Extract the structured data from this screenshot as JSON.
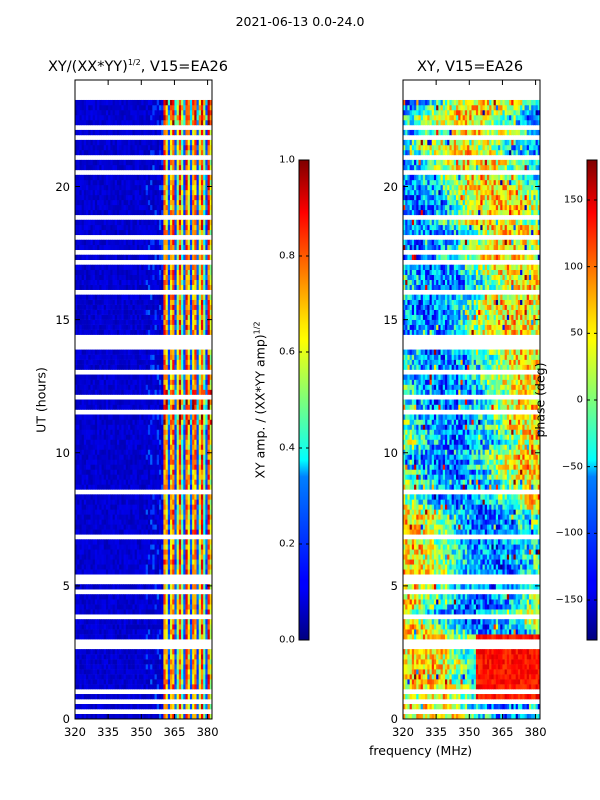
{
  "suptitle": "2021-06-13 0.0-24.0",
  "chart_data": [
    {
      "type": "heatmap",
      "title": "XY/(XX*YY)^1/2, V15=EA26",
      "title_main": "XY/(XX*YY)",
      "title_sup": "1/2",
      "title_rest": ", V15=EA26",
      "xlabel": "",
      "ylabel": "UT (hours)",
      "xlim": [
        320,
        382
      ],
      "ylim": [
        0,
        24
      ],
      "xticks": [
        "320",
        "335",
        "350",
        "365",
        "380"
      ],
      "xtick_values": [
        320,
        335,
        350,
        365,
        380
      ],
      "yticks": [
        "0",
        "5",
        "10",
        "15",
        "20"
      ],
      "ytick_values": [
        0,
        5,
        10,
        15,
        20
      ],
      "colorbar": {
        "label": "XY amp. / (XX*YY amp)^1/2",
        "label_main": "XY amp. / (XX*YY amp)",
        "label_sup": "1/2",
        "range": [
          0.0,
          1.0
        ],
        "ticks": [
          "0.0",
          "0.2",
          "0.4",
          "0.6",
          "0.8",
          "1.0"
        ],
        "tick_values": [
          0.0,
          0.2,
          0.4,
          0.6,
          0.8,
          1.0
        ],
        "colormap": "jet"
      },
      "description_values": {
        "low_band_mean": 0.08,
        "high_band_mean": 0.6,
        "high_band_start_mhz": 360,
        "flagged_bands_ut": [
          0.3,
          0.6,
          5.2,
          13.0,
          14.0,
          16.0,
          18.8,
          21.0,
          23.5
        ]
      }
    },
    {
      "type": "heatmap",
      "title": "XY, V15=EA26",
      "xlabel": "frequency (MHz)",
      "ylabel": "",
      "xlim": [
        320,
        382
      ],
      "ylim": [
        0,
        24
      ],
      "xticks": [
        "320",
        "335",
        "350",
        "365",
        "380"
      ],
      "xtick_values": [
        320,
        335,
        350,
        365,
        380
      ],
      "yticks": [
        "0",
        "5",
        "10",
        "15",
        "20"
      ],
      "ytick_values": [
        0,
        5,
        10,
        15,
        20
      ],
      "colorbar": {
        "label": "phase (deg)",
        "range": [
          -180,
          180
        ],
        "ticks": [
          "−150",
          "−100",
          "−50",
          "0",
          "50",
          "100",
          "150"
        ],
        "tick_values": [
          -150,
          -100,
          -50,
          0,
          50,
          100,
          150
        ],
        "colormap": "jet"
      },
      "description_values": {
        "red_region_ut": [
          0.5,
          3.2
        ],
        "red_region_mhz": [
          353,
          382
        ]
      }
    }
  ]
}
